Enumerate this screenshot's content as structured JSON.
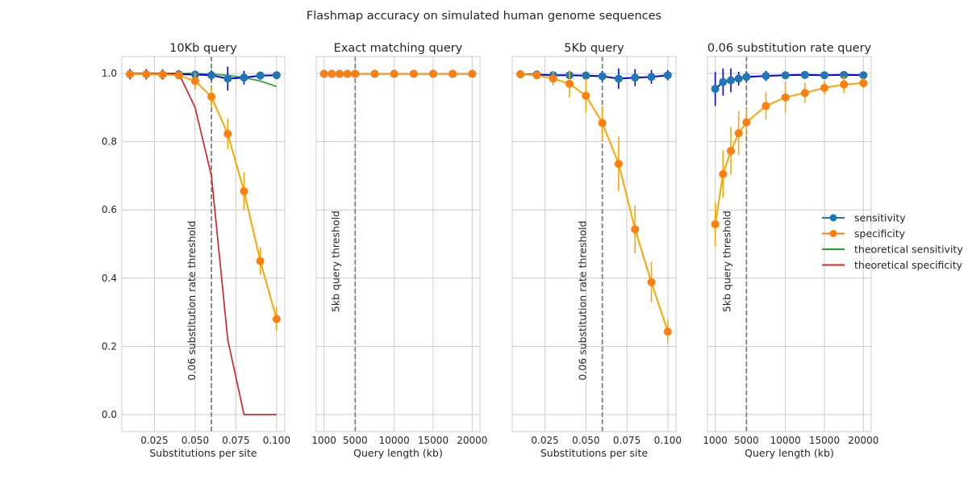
{
  "figure_title": "Flashmap accuracy on simulated human genome sequences",
  "colors": {
    "sensitivity": "#1f77b4",
    "sensitivity_line": "#0000ee",
    "specificity": "#ff7f0e",
    "specificity_line": "#ffa500",
    "theoretical_sensitivity": "#2ca02c",
    "theoretical_specificity": "#d62728",
    "threshold": "#808080",
    "grid": "#cccccc"
  },
  "legend": {
    "placement": "right",
    "entries": [
      {
        "label": "sensitivity",
        "marker": true,
        "color_key": "sensitivity"
      },
      {
        "label": "specificity",
        "marker": true,
        "color_key": "specificity"
      },
      {
        "label": "theoretical sensitivity",
        "marker": false,
        "color_key": "theoretical_sensitivity"
      },
      {
        "label": "theoretical specificity",
        "marker": false,
        "color_key": "theoretical_specificity"
      }
    ]
  },
  "chart_data": [
    {
      "type": "line",
      "title": "10Kb query",
      "xlabel": "Substitutions per site",
      "ylabel": "",
      "xlim": [
        0.005,
        0.105
      ],
      "ylim": [
        -0.05,
        1.05
      ],
      "xticks": [
        0.025,
        0.05,
        0.075,
        0.1
      ],
      "xtick_labels": [
        "0.025",
        "0.050",
        "0.075",
        "0.100"
      ],
      "yticks": [
        0.0,
        0.2,
        0.4,
        0.6,
        0.8,
        1.0
      ],
      "ytick_labels": [
        "0.0",
        "0.2",
        "0.4",
        "0.6",
        "0.8",
        "1.0"
      ],
      "show_yticklabels": true,
      "grid": true,
      "threshold": {
        "x": 0.06,
        "label": "0.06 substitution rate threshold",
        "label_y": 0.1
      },
      "series": [
        {
          "name": "sensitivity",
          "x": [
            0.01,
            0.02,
            0.03,
            0.04,
            0.05,
            0.06,
            0.07,
            0.08,
            0.09,
            0.1
          ],
          "y": [
            0.998,
            0.998,
            0.997,
            0.998,
            0.997,
            0.995,
            0.985,
            0.988,
            0.994,
            0.995
          ],
          "err": [
            0.015,
            0.015,
            0.015,
            0.01,
            0.01,
            0.015,
            0.035,
            0.02,
            0.012,
            0.008
          ]
        },
        {
          "name": "specificity",
          "x": [
            0.01,
            0.02,
            0.03,
            0.04,
            0.05,
            0.06,
            0.07,
            0.08,
            0.09,
            0.1
          ],
          "y": [
            0.998,
            0.998,
            0.997,
            0.995,
            0.978,
            0.932,
            0.823,
            0.655,
            0.45,
            0.28
          ],
          "err": [
            0.005,
            0.005,
            0.01,
            0.01,
            0.025,
            0.03,
            0.045,
            0.055,
            0.04,
            0.035
          ]
        },
        {
          "name": "theoretical sensitivity",
          "x": [
            0.01,
            0.02,
            0.03,
            0.04,
            0.05,
            0.06,
            0.07,
            0.08,
            0.09,
            0.1
          ],
          "y": [
            1.0,
            1.0,
            1.0,
            1.0,
            1.0,
            0.998,
            0.995,
            0.988,
            0.978,
            0.962
          ]
        },
        {
          "name": "theoretical specificity",
          "x": [
            0.01,
            0.02,
            0.03,
            0.04,
            0.05,
            0.06,
            0.07,
            0.08,
            0.09,
            0.1
          ],
          "y": [
            1.0,
            1.0,
            1.0,
            1.0,
            0.9,
            0.7,
            0.22,
            0.0,
            0.0,
            0.0
          ]
        }
      ]
    },
    {
      "type": "line",
      "title": "Exact matching query",
      "xlabel": "Query length (kb)",
      "ylabel": "",
      "xlim": [
        0,
        21000
      ],
      "ylim": [
        -0.05,
        1.05
      ],
      "xticks": [
        1000,
        5000,
        10000,
        15000,
        20000
      ],
      "xtick_labels": [
        "1000",
        "5000",
        "10000",
        "15000",
        "20000"
      ],
      "yticks": [
        0.0,
        0.2,
        0.4,
        0.6,
        0.8,
        1.0
      ],
      "ytick_labels": [
        "0.0",
        "0.2",
        "0.4",
        "0.6",
        "0.8",
        "1.0"
      ],
      "show_yticklabels": false,
      "grid": true,
      "threshold": {
        "x": 5000,
        "label": "5kb query threshold",
        "label_y": 0.3
      },
      "series": [
        {
          "name": "sensitivity",
          "x": [
            1000,
            2000,
            3000,
            4000,
            5000,
            7500,
            10000,
            12500,
            15000,
            17500,
            20000
          ],
          "y": [
            0.999,
            0.999,
            0.999,
            0.999,
            0.999,
            0.999,
            0.999,
            0.999,
            0.999,
            0.999,
            0.999
          ],
          "err": [
            0.002,
            0.002,
            0.002,
            0.002,
            0.002,
            0.002,
            0.002,
            0.002,
            0.002,
            0.002,
            0.002
          ]
        },
        {
          "name": "specificity",
          "x": [
            1000,
            2000,
            3000,
            4000,
            5000,
            7500,
            10000,
            12500,
            15000,
            17500,
            20000
          ],
          "y": [
            0.999,
            0.999,
            0.999,
            0.999,
            0.999,
            0.999,
            0.999,
            0.999,
            0.999,
            0.999,
            0.999
          ],
          "err": [
            0.002,
            0.002,
            0.002,
            0.002,
            0.002,
            0.002,
            0.002,
            0.002,
            0.002,
            0.002,
            0.002
          ]
        }
      ]
    },
    {
      "type": "line",
      "title": "5Kb query",
      "xlabel": "Substitutions per site",
      "ylabel": "",
      "xlim": [
        0.005,
        0.105
      ],
      "ylim": [
        -0.05,
        1.05
      ],
      "xticks": [
        0.025,
        0.05,
        0.075,
        0.1
      ],
      "xtick_labels": [
        "0.025",
        "0.050",
        "0.075",
        "0.100"
      ],
      "yticks": [
        0.0,
        0.2,
        0.4,
        0.6,
        0.8,
        1.0
      ],
      "ytick_labels": [
        "0.0",
        "0.2",
        "0.4",
        "0.6",
        "0.8",
        "1.0"
      ],
      "show_yticklabels": false,
      "grid": true,
      "threshold": {
        "x": 0.06,
        "label": "0.06 substitution rate threshold",
        "label_y": 0.1
      },
      "series": [
        {
          "name": "sensitivity",
          "x": [
            0.01,
            0.02,
            0.03,
            0.04,
            0.05,
            0.06,
            0.07,
            0.08,
            0.09,
            0.1
          ],
          "y": [
            0.998,
            0.997,
            0.995,
            0.995,
            0.994,
            0.992,
            0.985,
            0.988,
            0.99,
            0.995
          ],
          "err": [
            0.01,
            0.012,
            0.01,
            0.01,
            0.012,
            0.015,
            0.03,
            0.025,
            0.02,
            0.015
          ]
        },
        {
          "name": "specificity",
          "x": [
            0.01,
            0.02,
            0.03,
            0.04,
            0.05,
            0.06,
            0.07,
            0.08,
            0.09,
            0.1
          ],
          "y": [
            0.998,
            0.995,
            0.985,
            0.97,
            0.935,
            0.855,
            0.735,
            0.543,
            0.388,
            0.243
          ],
          "err": [
            0.005,
            0.01,
            0.02,
            0.04,
            0.05,
            0.05,
            0.08,
            0.07,
            0.06,
            0.035
          ]
        }
      ]
    },
    {
      "type": "line",
      "title": "0.06 substitution rate query",
      "xlabel": "Query length (kb)",
      "ylabel": "",
      "xlim": [
        0,
        21000
      ],
      "ylim": [
        -0.05,
        1.05
      ],
      "xticks": [
        1000,
        5000,
        10000,
        15000,
        20000
      ],
      "xtick_labels": [
        "1000",
        "5000",
        "10000",
        "15000",
        "20000"
      ],
      "yticks": [
        0.0,
        0.2,
        0.4,
        0.6,
        0.8,
        1.0
      ],
      "ytick_labels": [
        "0.0",
        "0.2",
        "0.4",
        "0.6",
        "0.8",
        "1.0"
      ],
      "show_yticklabels": false,
      "grid": true,
      "threshold": {
        "x": 5000,
        "label": "5kb query threshold",
        "label_y": 0.3
      },
      "series": [
        {
          "name": "sensitivity",
          "x": [
            1000,
            2000,
            3000,
            4000,
            5000,
            7500,
            10000,
            12500,
            15000,
            17500,
            20000
          ],
          "y": [
            0.955,
            0.975,
            0.98,
            0.985,
            0.99,
            0.993,
            0.995,
            0.996,
            0.995,
            0.996,
            0.995
          ],
          "err": [
            0.05,
            0.04,
            0.035,
            0.02,
            0.015,
            0.015,
            0.01,
            0.01,
            0.008,
            0.008,
            0.008
          ]
        },
        {
          "name": "specificity",
          "x": [
            1000,
            2000,
            3000,
            4000,
            5000,
            7500,
            10000,
            12500,
            15000,
            17500,
            20000
          ],
          "y": [
            0.558,
            0.705,
            0.773,
            0.825,
            0.857,
            0.905,
            0.93,
            0.943,
            0.958,
            0.968,
            0.972
          ],
          "err": [
            0.065,
            0.07,
            0.07,
            0.065,
            0.04,
            0.04,
            0.045,
            0.03,
            0.02,
            0.025,
            0.015
          ]
        }
      ]
    }
  ]
}
